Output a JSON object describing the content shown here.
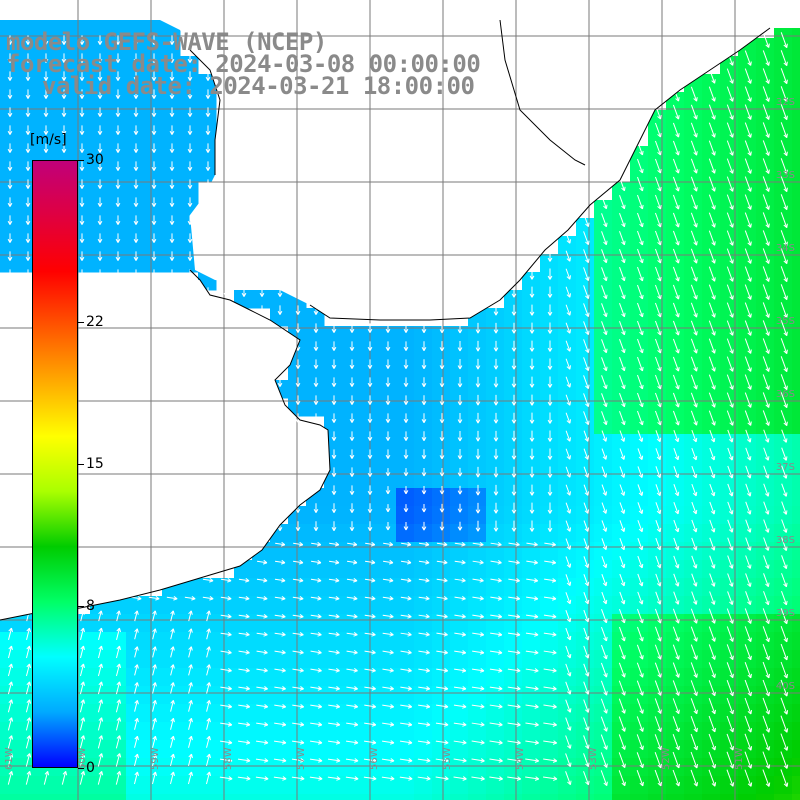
{
  "title": {
    "line1": "modelo GEFS-WAVE (NCEP)",
    "line2": "forecast date: 2024-03-08 00:00:00",
    "line3": "valid date: 2024-03-21 18:00:00"
  },
  "legend": {
    "unit": "[m/s]",
    "ticks": [
      {
        "label": "30",
        "value": 30
      },
      {
        "label": "22",
        "value": 22
      },
      {
        "label": "15",
        "value": 15
      },
      {
        "label": "8",
        "value": 8
      },
      {
        "label": "0",
        "value": 0
      }
    ],
    "colormap": [
      "#0000ff",
      "#00aaff",
      "#00ffff",
      "#00ff66",
      "#00cc00",
      "#aaff00",
      "#ffff00",
      "#ffaa00",
      "#ff5500",
      "#ff0000",
      "#e00040",
      "#c0007a"
    ]
  },
  "map": {
    "land_color": "#ffffff",
    "coast_color": "#000000",
    "grid_color": "#7a7a7a",
    "arrow_color": "#ffffff",
    "lat_labels": [
      "32S",
      "33S",
      "34S",
      "35S",
      "36S",
      "37S",
      "38S",
      "39S",
      "40S"
    ],
    "lon_labels": [
      "61W",
      "60W",
      "59W",
      "58W",
      "57W",
      "56W",
      "55W",
      "54W",
      "53W",
      "52W",
      "51W"
    ]
  }
}
